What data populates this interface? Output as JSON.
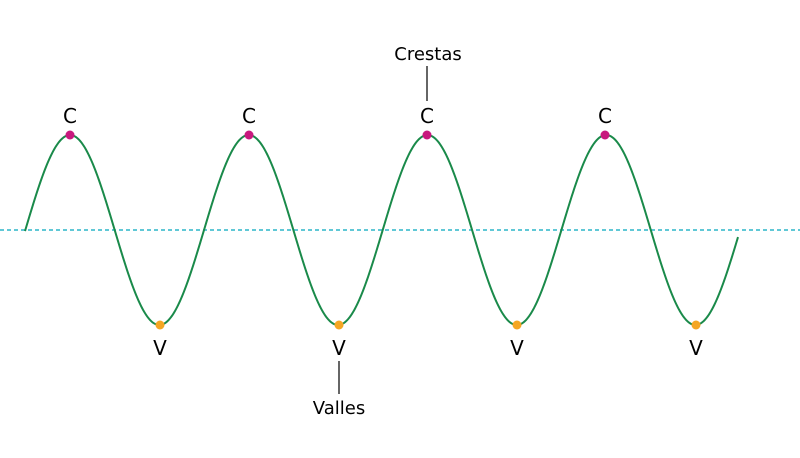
{
  "diagram": {
    "crest_marker": "C",
    "trough_marker": "V",
    "crest_callout": "Crestas",
    "trough_callout": "Valles",
    "colors": {
      "wave": "#1a8a4a",
      "baseline": "#2bb5c9",
      "crest_point": "#c8197e",
      "trough_point": "#f5a623",
      "leader": "#000000"
    }
  }
}
